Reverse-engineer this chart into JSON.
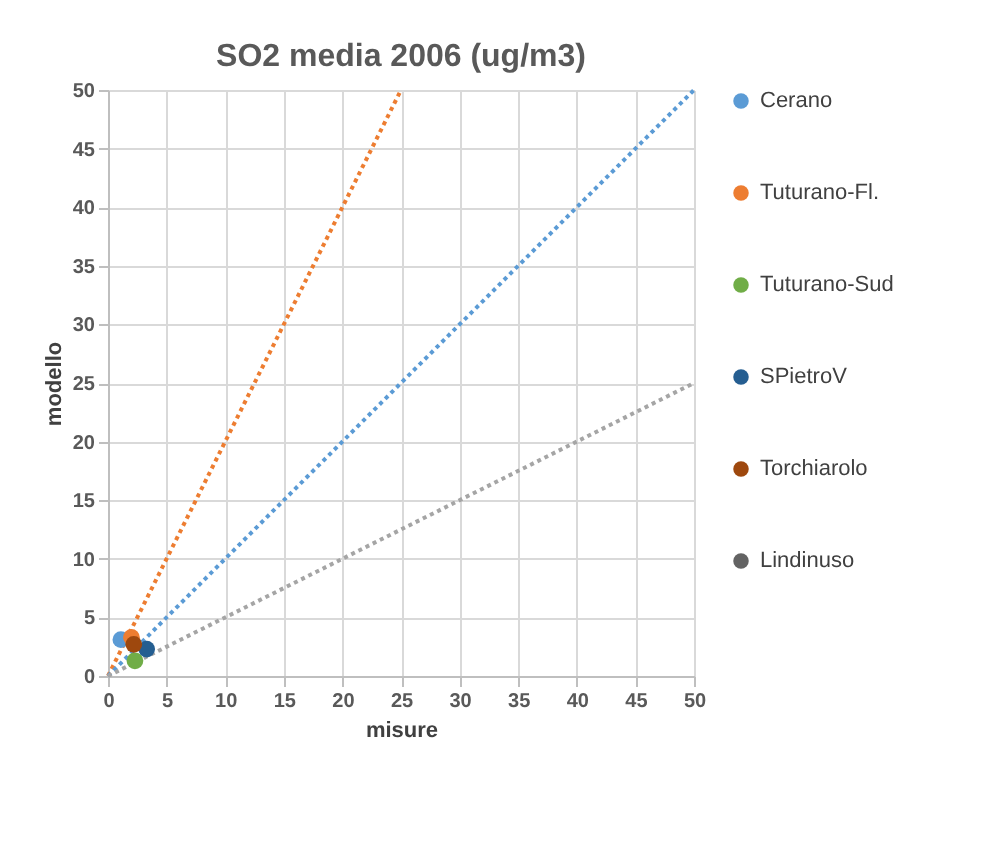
{
  "chart_data": {
    "type": "scatter",
    "title": "SO2 media 2006 (ug/m3)",
    "xlabel": "misure",
    "ylabel": "modello",
    "xlim": [
      0,
      50
    ],
    "ylim": [
      0,
      50
    ],
    "xticks": [
      0,
      5,
      10,
      15,
      20,
      25,
      30,
      35,
      40,
      45,
      50
    ],
    "yticks": [
      0,
      5,
      10,
      15,
      20,
      25,
      30,
      35,
      40,
      45,
      50
    ],
    "grid": true,
    "legend": "right",
    "marker": "circle",
    "series": [
      {
        "name": "Cerano",
        "color": "#5b9bd5",
        "x": [
          1.1
        ],
        "values": [
          3.1
        ]
      },
      {
        "name": "Tuturano-Fl.",
        "color": "#ed7d31",
        "x": [
          2.0
        ],
        "values": [
          3.3
        ]
      },
      {
        "name": "Tuturano-Sud",
        "color": "#70ad47",
        "x": [
          2.3
        ],
        "values": [
          1.3
        ]
      },
      {
        "name": "SPietroV",
        "color": "#255e91",
        "x": [
          3.3
        ],
        "values": [
          2.3
        ]
      },
      {
        "name": "Torchiarolo",
        "color": "#9e480e",
        "x": [
          2.2
        ],
        "values": [
          2.7
        ]
      },
      {
        "name": "Lindinuso",
        "color": "#636363",
        "x": [
          null
        ],
        "values": [
          null
        ]
      },
      {
        "type": "line",
        "line_style": "dotted",
        "marker": "none",
        "color": "#ed7d31",
        "x": [
          0,
          25
        ],
        "values": [
          0,
          50
        ]
      },
      {
        "type": "line",
        "line_style": "dotted",
        "marker": "none",
        "color": "#5b9bd5",
        "x": [
          0,
          50
        ],
        "values": [
          0,
          50
        ]
      },
      {
        "type": "line",
        "line_style": "dotted",
        "marker": "none",
        "color": "#a5a5a5",
        "x": [
          0,
          50
        ],
        "values": [
          0,
          25
        ]
      }
    ]
  }
}
